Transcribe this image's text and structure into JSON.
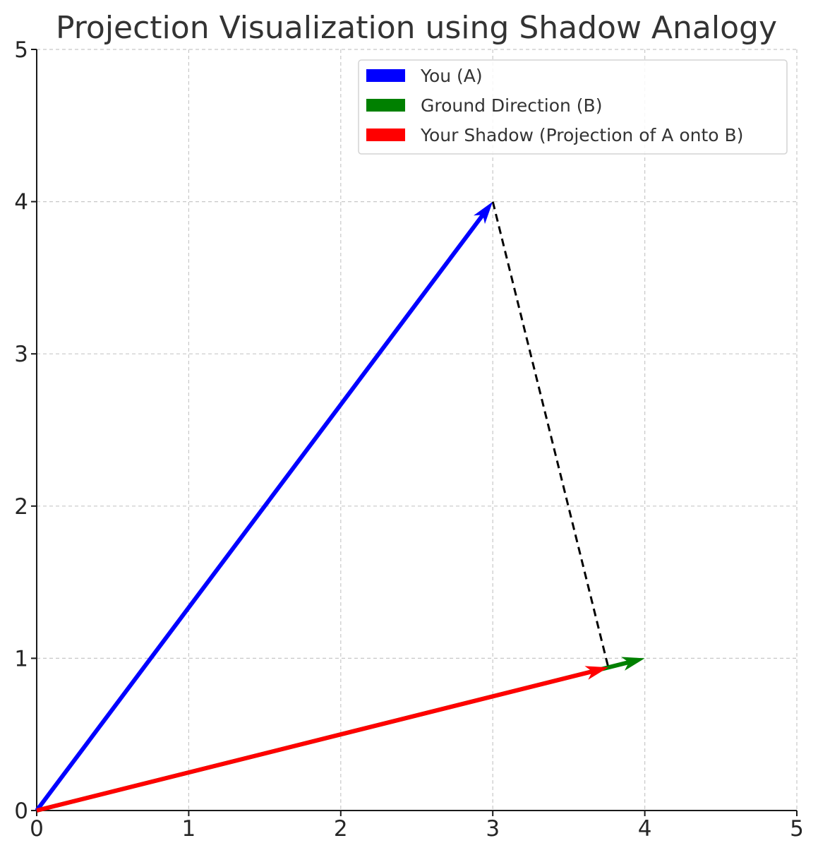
{
  "chart_data": {
    "type": "vector",
    "title": "Projection Visualization using Shadow Analogy",
    "xlabel": "",
    "ylabel": "",
    "xlim": [
      0,
      5
    ],
    "ylim": [
      0,
      5
    ],
    "xticks": [
      "0",
      "1",
      "2",
      "3",
      "4",
      "5"
    ],
    "yticks": [
      "0",
      "1",
      "2",
      "3",
      "4",
      "5"
    ],
    "grid": true,
    "legend_position": "top-right",
    "series": [
      {
        "name": "You (A)",
        "color": "#0000ff",
        "start": [
          0,
          0
        ],
        "end": [
          3,
          4
        ]
      },
      {
        "name": "Ground Direction (B)",
        "color": "#008000",
        "start": [
          0,
          0
        ],
        "end": [
          4,
          1
        ]
      },
      {
        "name": "Your Shadow (Projection of A onto B)",
        "color": "#ff0000",
        "start": [
          0,
          0
        ],
        "end": [
          3.76,
          0.94
        ]
      }
    ],
    "annotations": [
      {
        "type": "dashed-line",
        "color": "#000000",
        "from": [
          3,
          4
        ],
        "to": [
          3.76,
          0.94
        ]
      }
    ]
  }
}
